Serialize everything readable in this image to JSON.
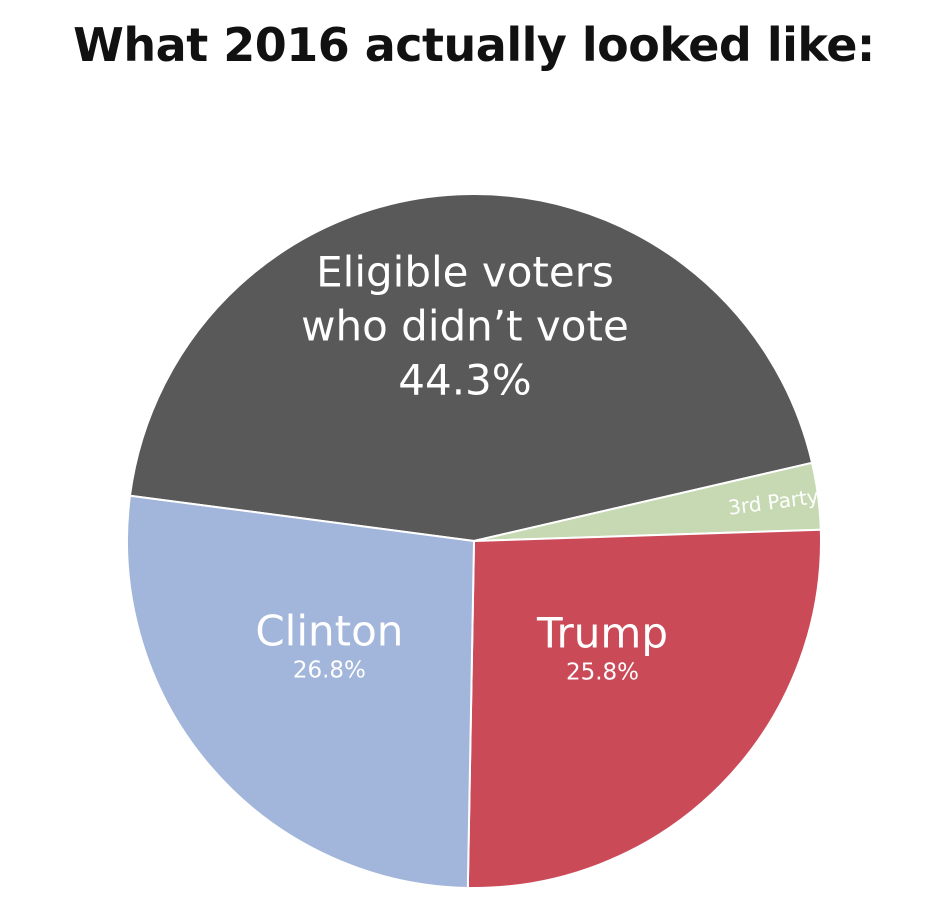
{
  "title": "What 2016 actually looked like:",
  "chart_data": {
    "type": "pie",
    "title": "What 2016 actually looked like:",
    "slices": [
      {
        "label_lines": [
          "Eligible voters",
          "who didn’t vote"
        ],
        "value": 44.3,
        "value_label": "44.3%",
        "color": "#595959"
      },
      {
        "label_lines": [
          "3rd Party"
        ],
        "value": 3.1,
        "value_label": "",
        "color": "#c6d9b3"
      },
      {
        "label_lines": [
          "Trump"
        ],
        "value": 25.8,
        "value_label": "25.8%",
        "color": "#cb4a58"
      },
      {
        "label_lines": [
          "Clinton"
        ],
        "value": 26.8,
        "value_label": "26.8%",
        "color": "#a2b5da"
      }
    ]
  }
}
